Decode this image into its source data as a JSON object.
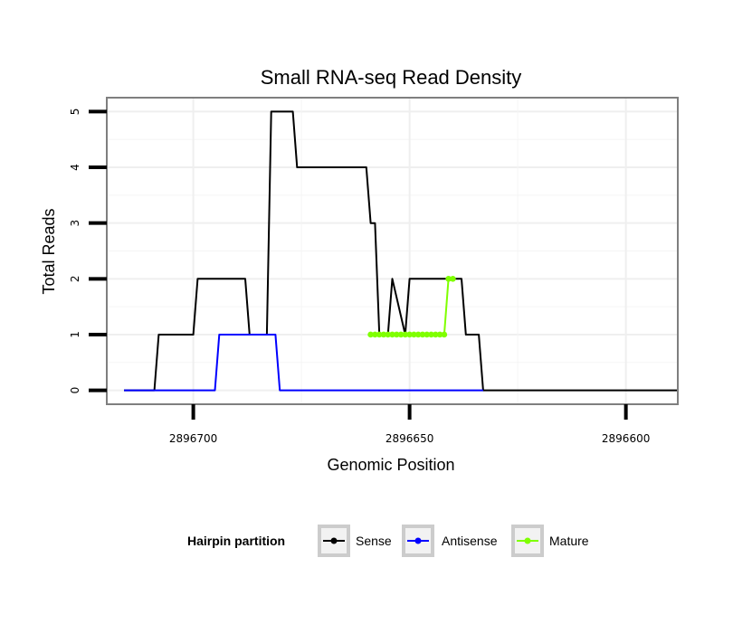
{
  "chart_data": {
    "type": "line",
    "title": "Small RNA-seq Read Density",
    "xlabel": "Genomic Position",
    "ylabel": "Total Reads",
    "xlim": [
      2896720,
      2896588
    ],
    "x_reversed": true,
    "ylim": [
      -0.25,
      5.25
    ],
    "x_ticks": [
      2896700,
      2896650,
      2896600
    ],
    "x_tick_labels": [
      "2896700",
      "2896650",
      "2896600"
    ],
    "y_ticks": [
      0,
      1,
      2,
      3,
      4,
      5
    ],
    "y_tick_labels": [
      "0",
      "1",
      "2",
      "3",
      "4",
      "5"
    ],
    "grid": true,
    "legend": {
      "title": "Hairpin partition",
      "position": "bottom",
      "entries": [
        "Sense",
        "Antisense",
        "Mature"
      ]
    },
    "series": [
      {
        "name": "Sense",
        "color": "#000000",
        "x": [
          2896716,
          2896709,
          2896708,
          2896700,
          2896699,
          2896688,
          2896687,
          2896683,
          2896682,
          2896677,
          2896676,
          2896674,
          2896673,
          2896672,
          2896671,
          2896660,
          2896659,
          2896658,
          2896657,
          2896655,
          2896654,
          2896651,
          2896650,
          2896638,
          2896637,
          2896634,
          2896633,
          2896588
        ],
        "y": [
          0,
          0,
          1,
          1,
          2,
          2,
          1,
          1,
          5,
          5,
          4,
          4,
          4,
          4,
          4,
          4,
          3,
          3,
          1,
          1,
          2,
          1,
          2,
          2,
          1,
          1,
          0,
          0
        ]
      },
      {
        "name": "Antisense",
        "color": "#0000ff",
        "x": [
          2896716,
          2896695,
          2896694,
          2896681,
          2896680,
          2896633
        ],
        "y": [
          0,
          0,
          1,
          1,
          0,
          0
        ]
      },
      {
        "name": "Mature",
        "color": "#7fff00",
        "x": [
          2896659,
          2896658,
          2896657,
          2896656,
          2896655,
          2896654,
          2896653,
          2896652,
          2896651,
          2896650,
          2896649,
          2896648,
          2896647,
          2896646,
          2896645,
          2896644,
          2896643,
          2896642,
          2896641,
          2896640
        ],
        "y": [
          1,
          1,
          1,
          1,
          1,
          1,
          1,
          1,
          1,
          1,
          1,
          1,
          1,
          1,
          1,
          1,
          1,
          1,
          2,
          2
        ]
      }
    ]
  }
}
